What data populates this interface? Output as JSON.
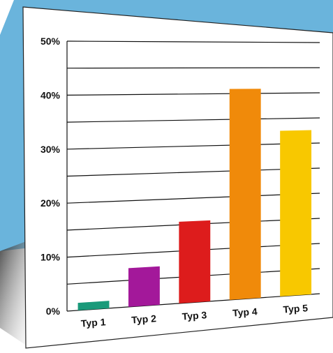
{
  "colors": {
    "backdrop": "#6ab4dc",
    "paper": "#ffffff",
    "paper_edge": "#222222",
    "grid": "#111111",
    "shadow": "#4a4a4a"
  },
  "chart_data": {
    "type": "bar",
    "categories": [
      "Typ 1",
      "Typ 2",
      "Typ 3",
      "Typ 4",
      "Typ 5"
    ],
    "values": [
      1.4,
      7.3,
      15.6,
      40.9,
      32.6
    ],
    "y_ticks": [
      {
        "value": 0,
        "label": "0%"
      },
      {
        "value": 10,
        "label": "10%"
      },
      {
        "value": 20,
        "label": "20%"
      },
      {
        "value": 30,
        "label": "30%"
      },
      {
        "value": 40,
        "label": "40%"
      },
      {
        "value": 50,
        "label": "50%"
      }
    ],
    "ylim": [
      0,
      50
    ],
    "minor_step": 5,
    "bar_colors": [
      "#1a9a7a",
      "#a3189a",
      "#dd1c1c",
      "#f08a0a",
      "#f8c800"
    ],
    "title": "",
    "xlabel": "",
    "ylabel": "",
    "grid": true,
    "legend": "none",
    "perspective": "paper sheet tilted in 3D"
  }
}
